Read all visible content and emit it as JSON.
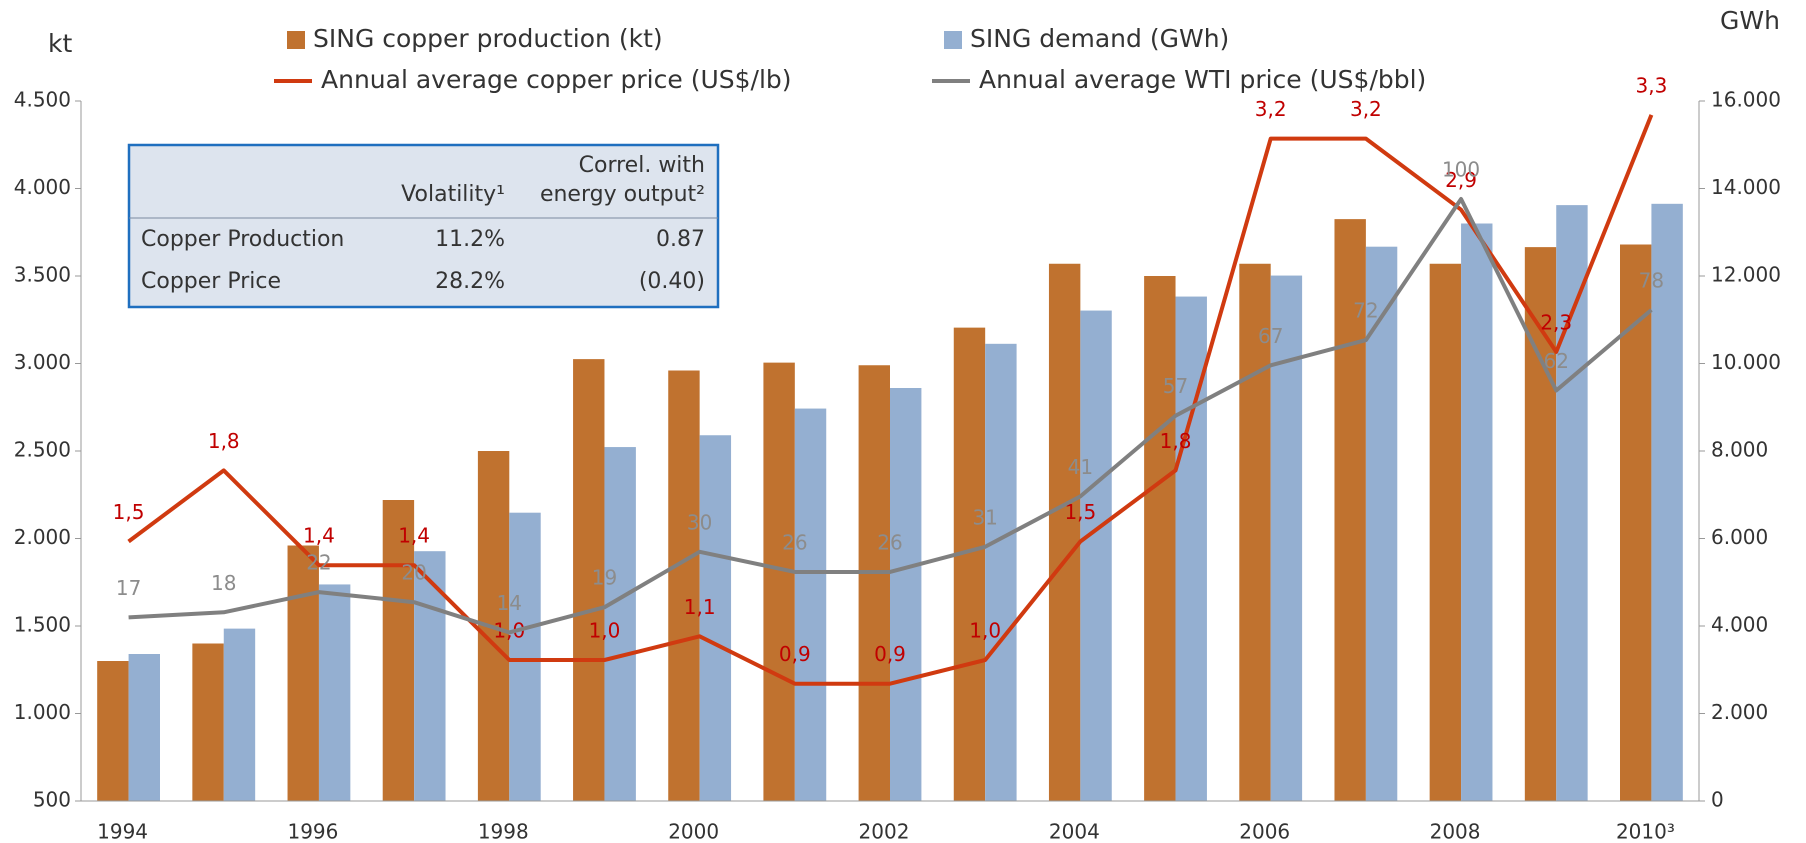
{
  "chart_data": {
    "type": "bar",
    "y_label": "kt",
    "y2_label": "GWh",
    "categories": [
      "1994",
      null,
      "1996",
      null,
      "1998",
      null,
      "2000",
      null,
      "2002",
      null,
      "2004",
      null,
      "2006",
      null,
      "2008",
      null,
      "2010³"
    ],
    "ylim": [
      500,
      4500
    ],
    "yticks": [
      500,
      {
        "value": 1000,
        "label": "1.000"
      },
      {
        "value": 1500,
        "label": "1.500"
      },
      {
        "value": 2000,
        "label": "2.000"
      },
      {
        "value": 2500,
        "label": "2.500"
      },
      {
        "value": 3000,
        "label": "3.000"
      },
      {
        "value": 3500,
        "label": "3.500"
      },
      {
        "value": 4000,
        "label": "4.000"
      },
      {
        "value": 4500,
        "label": "4.500"
      }
    ],
    "y2lim": [
      0,
      16000
    ],
    "y2ticks": [
      0,
      {
        "value": 2000,
        "label": "2.000"
      },
      {
        "value": 4000,
        "label": "4.000"
      },
      {
        "value": 6000,
        "label": "6.000"
      },
      {
        "value": 8000,
        "label": "8.000"
      },
      {
        "value": 10000,
        "label": "10.000"
      },
      {
        "value": 12000,
        "label": "12.000"
      },
      {
        "value": 14000,
        "label": "14.000"
      },
      {
        "value": 16000,
        "label": "16.000"
      }
    ],
    "series": [
      {
        "name": "SING copper production (kt)",
        "type": "bar",
        "color": "#c0722f",
        "values": [
          1300,
          1400,
          1960,
          2220,
          2500,
          3025,
          2960,
          3005,
          2990,
          3205,
          3570,
          3500,
          3570,
          3825,
          3570,
          3665,
          3680
        ]
      },
      {
        "name": "SING demand (GWh)",
        "type": "bar",
        "axis": "y2",
        "color": "#94afd1",
        "values": [
          3360,
          3940,
          4950,
          5710,
          6590,
          8090,
          8360,
          8970,
          9440,
          10450,
          11210,
          11530,
          12010,
          12670,
          13200,
          13620,
          13650
        ]
      },
      {
        "name": "Annual average copper price (US$/lb)",
        "type": "line",
        "color": "#d03a10",
        "label_color": "#c00000",
        "values": [
          1.5,
          1.8,
          1.4,
          1.4,
          1.0,
          1.0,
          1.1,
          0.9,
          0.9,
          1.0,
          1.5,
          1.8,
          3.2,
          3.2,
          2.9,
          2.3,
          3.3
        ],
        "value_labels": [
          "1,5",
          "1,8",
          "1,4",
          "1,4",
          "1,0",
          "1,0",
          "1,1",
          "0,9",
          "0,9",
          "1,0",
          "1,5",
          "1,8",
          "3,2",
          "3,2",
          "2,9",
          "2,3",
          "3,3"
        ]
      },
      {
        "name": "Annual average WTI price (US$/bbl)",
        "type": "line",
        "color": "#808080",
        "label_color": "#8c8c8c",
        "values": [
          17,
          18,
          22,
          20,
          14,
          19,
          30,
          26,
          26,
          31,
          41,
          57,
          67,
          72,
          100,
          62,
          78
        ]
      }
    ]
  },
  "table": {
    "header": [
      "Volatility¹",
      "Correl. with",
      "energy output²"
    ],
    "rows": [
      [
        "Copper Production",
        "11.2%",
        "0.87"
      ],
      [
        "Copper Price",
        "28.2%",
        "(0.40)"
      ]
    ]
  }
}
